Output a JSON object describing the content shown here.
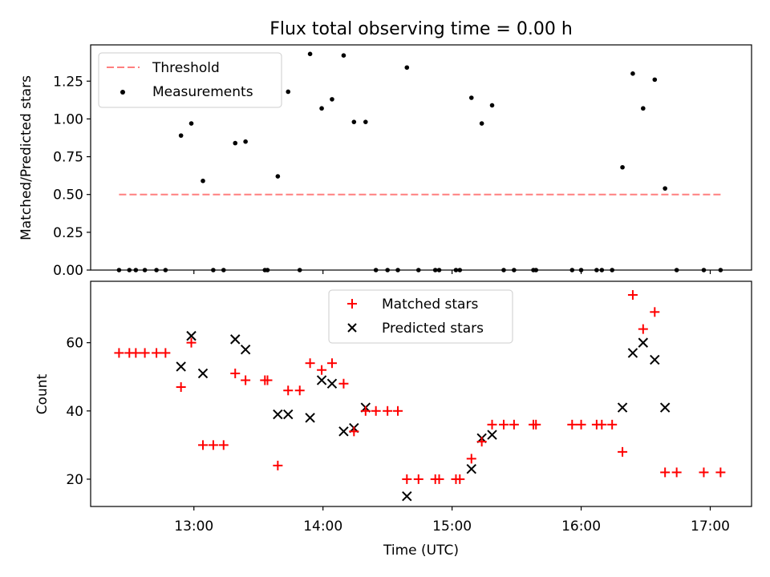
{
  "colors": {
    "threshold": "#ff7f7f",
    "measurement": "#000000",
    "matched": "#ff0000",
    "predicted": "#000000",
    "axis": "#000000",
    "background": "#ffffff"
  },
  "chart_data": [
    {
      "type": "scatter",
      "title": "Flux total observing time = 0.00 h",
      "xlabel": "",
      "ylabel": "Matched/Predicted stars",
      "xlim": [
        12.2,
        17.32
      ],
      "ylim": [
        0.0,
        1.49
      ],
      "yticks": [
        0.0,
        0.25,
        0.5,
        0.75,
        1.0,
        1.25
      ],
      "ytick_labels": [
        "0.00",
        "0.25",
        "0.50",
        "0.75",
        "1.00",
        "1.25"
      ],
      "xticks": [
        13,
        14,
        15,
        16,
        17
      ],
      "grid": false,
      "legend_position": "top-left",
      "legend": [
        "Threshold",
        "Measurements"
      ],
      "series": [
        {
          "name": "Threshold",
          "kind": "dashed-line",
          "x": [
            12.42,
            17.08
          ],
          "y": [
            0.5,
            0.5
          ]
        },
        {
          "name": "Measurements",
          "kind": "dots",
          "x": [
            12.42,
            12.5,
            12.55,
            12.62,
            12.71,
            12.78,
            12.9,
            12.98,
            13.07,
            13.15,
            13.23,
            13.32,
            13.4,
            13.55,
            13.57,
            13.65,
            13.73,
            13.82,
            13.9,
            13.99,
            14.07,
            14.16,
            14.24,
            14.33,
            14.41,
            14.5,
            14.58,
            14.65,
            14.74,
            14.87,
            14.9,
            15.03,
            15.06,
            15.15,
            15.23,
            15.31,
            15.4,
            15.48,
            15.63,
            15.65,
            15.93,
            16.0,
            16.12,
            16.16,
            16.24,
            16.32,
            16.4,
            16.48,
            16.57,
            16.65,
            16.74,
            16.95,
            17.08
          ],
          "y": [
            0,
            0,
            0,
            0,
            0,
            0,
            0.89,
            0.97,
            0.59,
            0,
            0,
            0.84,
            0.85,
            0,
            0,
            0.62,
            1.18,
            0,
            1.43,
            1.07,
            1.13,
            1.42,
            0.98,
            0.98,
            0,
            0,
            0,
            1.34,
            0,
            0,
            0,
            0,
            0,
            1.14,
            0.97,
            1.09,
            0,
            0,
            0,
            0,
            0,
            0,
            0,
            0,
            0,
            0.68,
            1.3,
            1.07,
            1.26,
            0.54,
            0,
            0,
            0
          ]
        }
      ]
    },
    {
      "type": "scatter",
      "title": "",
      "xlabel": "Time (UTC)",
      "ylabel": "Count",
      "xlim": [
        12.2,
        17.32
      ],
      "ylim": [
        12,
        78
      ],
      "yticks": [
        20,
        40,
        60
      ],
      "ytick_labels": [
        "20",
        "40",
        "60"
      ],
      "xticks": [
        13,
        14,
        15,
        16,
        17
      ],
      "xtick_labels": [
        "13:00",
        "14:00",
        "15:00",
        "16:00",
        "17:00"
      ],
      "grid": false,
      "legend_position": "top-center",
      "legend": [
        "Matched stars",
        "Predicted stars"
      ],
      "series": [
        {
          "name": "Matched stars",
          "kind": "plus",
          "x": [
            12.42,
            12.5,
            12.55,
            12.62,
            12.71,
            12.78,
            12.9,
            12.98,
            13.07,
            13.15,
            13.23,
            13.32,
            13.4,
            13.55,
            13.57,
            13.65,
            13.73,
            13.82,
            13.9,
            13.99,
            14.07,
            14.16,
            14.24,
            14.33,
            14.41,
            14.5,
            14.58,
            14.65,
            14.74,
            14.87,
            14.9,
            15.03,
            15.06,
            15.15,
            15.23,
            15.31,
            15.4,
            15.48,
            15.63,
            15.65,
            15.93,
            16.0,
            16.12,
            16.16,
            16.24,
            16.32,
            16.4,
            16.48,
            16.57,
            16.65,
            16.74,
            16.95,
            17.08
          ],
          "y": [
            57,
            57,
            57,
            57,
            57,
            57,
            47,
            60,
            30,
            30,
            30,
            51,
            49,
            49,
            49,
            24,
            46,
            46,
            54,
            52,
            54,
            48,
            34,
            40,
            40,
            40,
            40,
            20,
            20,
            20,
            20,
            20,
            20,
            26,
            31,
            36,
            36,
            36,
            36,
            36,
            36,
            36,
            36,
            36,
            36,
            28,
            74,
            64,
            69,
            22,
            22,
            22,
            22
          ]
        },
        {
          "name": "Predicted stars",
          "kind": "x",
          "x": [
            12.9,
            12.98,
            13.07,
            13.32,
            13.4,
            13.65,
            13.73,
            13.9,
            13.99,
            14.07,
            14.16,
            14.24,
            14.33,
            14.65,
            15.15,
            15.23,
            15.31,
            16.32,
            16.4,
            16.48,
            16.57,
            16.65
          ],
          "y": [
            53,
            62,
            51,
            61,
            58,
            39,
            39,
            38,
            49,
            48,
            34,
            35,
            41,
            15,
            23,
            32,
            33,
            41,
            57,
            60,
            55,
            41
          ]
        }
      ]
    }
  ]
}
